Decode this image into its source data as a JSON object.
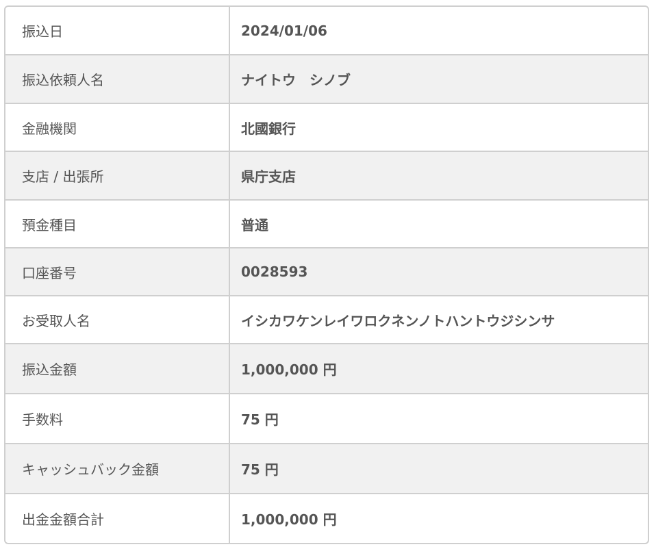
{
  "rows": [
    {
      "label": "振込日",
      "value": "2024/01/06"
    },
    {
      "label": "振込依頼人名",
      "value": "ナイトウ　シノブ"
    },
    {
      "label": "金融機関",
      "value": "北國銀行"
    },
    {
      "label": "支店 / 出張所",
      "value": "県庁支店"
    },
    {
      "label": "預金種目",
      "value": "普通"
    },
    {
      "label": "口座番号",
      "value": "0028593"
    },
    {
      "label": "お受取人名",
      "value": "イシカワケンレイワロクネンノトハントウジシンサ"
    },
    {
      "label": "振込金額",
      "value": "1,000,000 円"
    },
    {
      "label": "手数料",
      "value": "75 円"
    },
    {
      "label": "キャッシュバック金額",
      "value": "75 円"
    },
    {
      "label": "出金金額合計",
      "value": "1,000,000 円"
    }
  ]
}
